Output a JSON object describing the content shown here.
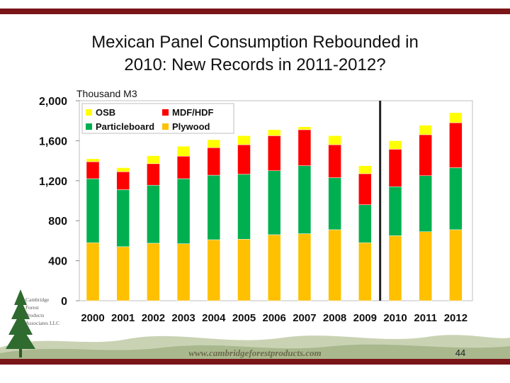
{
  "slide": {
    "title_line1": "Mexican Panel Consumption Rebounded in",
    "title_line2": "2010: New Records in 2011-2012?",
    "website": "www.cambridgeforestproducts.com",
    "page_number": "44",
    "logo_lines": [
      "Cambridge",
      "Forest",
      "Products",
      "Associates LLC"
    ]
  },
  "colors": {
    "plywood": "#ffc000",
    "particleboard": "#00b050",
    "mdf": "#ff0000",
    "osb": "#ffff00",
    "accent": "#7a1518",
    "divider": "#222222"
  },
  "chart_data": {
    "type": "bar",
    "stacked": true,
    "title": "Mexican Panel Consumption Rebounded in 2010: New Records in 2011-2012?",
    "unit_label": "Thousand M3",
    "categories": [
      "2000",
      "2001",
      "2002",
      "2003",
      "2004",
      "2005",
      "2006",
      "2007",
      "2008",
      "2009",
      "2010",
      "2011",
      "2012"
    ],
    "series": [
      {
        "name": "Plywood",
        "key": "plywood",
        "values": [
          580,
          540,
          575,
          570,
          610,
          615,
          660,
          670,
          710,
          580,
          650,
          690,
          710
        ]
      },
      {
        "name": "Particleboard",
        "key": "particleboard",
        "values": [
          640,
          570,
          580,
          650,
          645,
          650,
          640,
          680,
          520,
          380,
          490,
          560,
          620
        ]
      },
      {
        "name": "MDF/HDF",
        "key": "mdf",
        "values": [
          170,
          180,
          215,
          225,
          275,
          295,
          350,
          360,
          330,
          310,
          375,
          410,
          450
        ]
      },
      {
        "name": "OSB",
        "key": "osb",
        "values": [
          30,
          40,
          80,
          100,
          80,
          90,
          60,
          30,
          90,
          80,
          85,
          95,
          100
        ]
      }
    ],
    "legend": [
      "OSB",
      "MDF/HDF",
      "Particleboard",
      "Plywood"
    ],
    "legend_position": "top-left",
    "ylim": [
      0,
      2000
    ],
    "yticks": [
      "0",
      "400",
      "800",
      "1,200",
      "1,600",
      "2,000"
    ],
    "ytick_values": [
      0,
      400,
      800,
      1200,
      1600,
      2000
    ],
    "annotation": "vertical divider between 2009 and 2010"
  }
}
